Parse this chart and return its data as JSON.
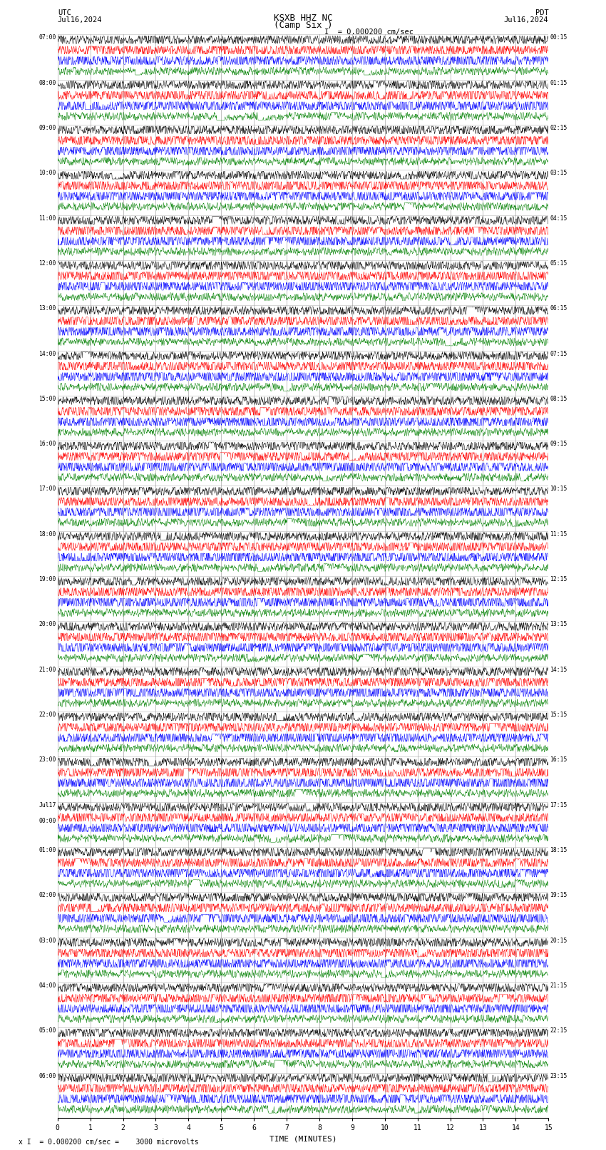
{
  "title_line1": "KSXB HHZ NC",
  "title_line2": "(Camp Six )",
  "scale_label": "= 0.000200 cm/sec",
  "left_date": "Jul16,2024",
  "right_date": "Jul16,2024",
  "left_label": "UTC",
  "right_label": "PDT",
  "scale_note": "= 0.000200 cm/sec =    3000 microvolts",
  "scale_letter": "x",
  "xlabel": "TIME (MINUTES)",
  "x_min": 0,
  "x_max": 15,
  "x_ticks": [
    0,
    1,
    2,
    3,
    4,
    5,
    6,
    7,
    8,
    9,
    10,
    11,
    12,
    13,
    14,
    15
  ],
  "bg_color": "#ffffff",
  "trace_colors": [
    "black",
    "red",
    "blue",
    "green"
  ],
  "n_rows": 24,
  "traces_per_row": 4,
  "grid_color": "#888888",
  "font_family": "monospace",
  "noise_scale_colors": [
    0.3,
    0.38,
    0.42,
    0.22
  ],
  "left_labels_utc": [
    "07:00",
    "08:00",
    "09:00",
    "10:00",
    "11:00",
    "12:00",
    "13:00",
    "14:00",
    "15:00",
    "16:00",
    "17:00",
    "18:00",
    "19:00",
    "20:00",
    "21:00",
    "22:00",
    "23:00",
    "Jul17\n00:00",
    "01:00",
    "02:00",
    "03:00",
    "04:00",
    "05:00",
    "06:00"
  ],
  "right_labels_pdt": [
    "00:15",
    "01:15",
    "02:15",
    "03:15",
    "04:15",
    "05:15",
    "06:15",
    "07:15",
    "08:15",
    "09:15",
    "10:15",
    "11:15",
    "12:15",
    "13:15",
    "14:15",
    "15:15",
    "16:15",
    "17:15",
    "18:15",
    "19:15",
    "20:15",
    "21:15",
    "22:15",
    "23:15"
  ]
}
